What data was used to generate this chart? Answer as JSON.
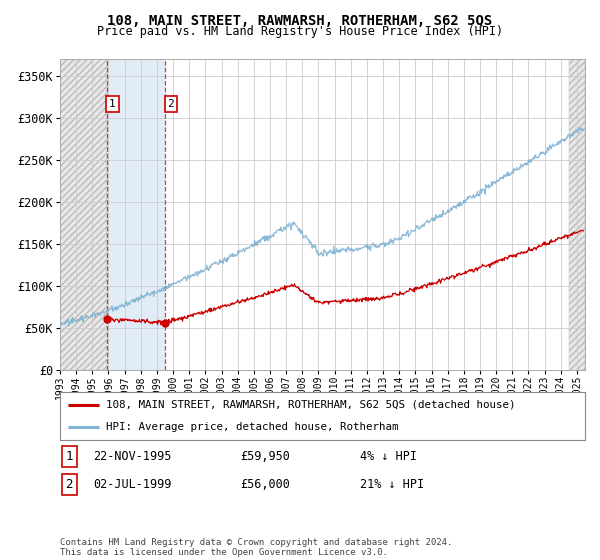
{
  "title": "108, MAIN STREET, RAWMARSH, ROTHERHAM, S62 5QS",
  "subtitle": "Price paid vs. HM Land Registry's House Price Index (HPI)",
  "legend_label_red": "108, MAIN STREET, RAWMARSH, ROTHERHAM, S62 5QS (detached house)",
  "legend_label_blue": "HPI: Average price, detached house, Rotherham",
  "transaction1_label": "1",
  "transaction1_date": "22-NOV-1995",
  "transaction1_price": "£59,950",
  "transaction1_hpi": "4% ↓ HPI",
  "transaction2_label": "2",
  "transaction2_date": "02-JUL-1999",
  "transaction2_price": "£56,000",
  "transaction2_hpi": "21% ↓ HPI",
  "footer": "Contains HM Land Registry data © Crown copyright and database right 2024.\nThis data is licensed under the Open Government Licence v3.0.",
  "xmin": 1993.0,
  "xmax": 2025.5,
  "ymin": 0,
  "ymax": 370000,
  "yticks": [
    0,
    50000,
    100000,
    150000,
    200000,
    250000,
    300000,
    350000
  ],
  "ytick_labels": [
    "£0",
    "£50K",
    "£100K",
    "£150K",
    "£200K",
    "£250K",
    "£300K",
    "£350K"
  ],
  "transaction1_x": 1995.89,
  "transaction1_y": 59950,
  "transaction2_x": 1999.5,
  "transaction2_y": 56000,
  "background_color": "#ffffff",
  "grid_color": "#cccccc",
  "red_color": "#cc0000",
  "blue_color": "#7fb3d3",
  "hatch_fill_color": "#dddddd",
  "blue_fill_color": "#dce9f5"
}
